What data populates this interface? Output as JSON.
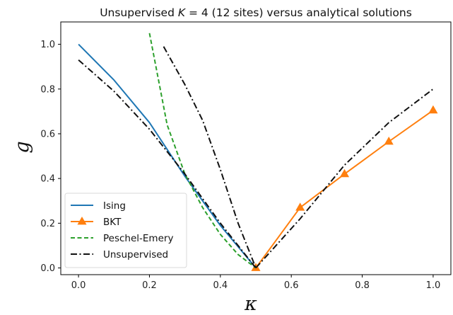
{
  "chart_data": {
    "type": "line",
    "title_parts": {
      "pre": "Unsupervised ",
      "var": "K",
      "post": " = 4 (12 sites) versus analytical solutions"
    },
    "xlabel": "κ",
    "ylabel": "g",
    "xlim": [
      -0.05,
      1.05
    ],
    "ylim": [
      -0.03,
      1.1
    ],
    "xticks": [
      "0.0",
      "0.2",
      "0.4",
      "0.6",
      "0.8",
      "1.0"
    ],
    "yticks": [
      "0.0",
      "0.2",
      "0.4",
      "0.6",
      "0.8",
      "1.0"
    ],
    "grid": false,
    "legend_position": "lower-left",
    "series": [
      {
        "name": "Ising",
        "color": "#1f77b4",
        "style": "solid",
        "marker": "none",
        "x": [
          0.0,
          0.1,
          0.2,
          0.3,
          0.4,
          0.5
        ],
        "y": [
          1.0,
          0.84,
          0.65,
          0.41,
          0.19,
          0.0
        ]
      },
      {
        "name": "BKT",
        "color": "#ff7f0e",
        "style": "solid",
        "marker": "triangle",
        "x": [
          0.5,
          0.625,
          0.75,
          0.875,
          1.0
        ],
        "y": [
          0.0,
          0.27,
          0.42,
          0.565,
          0.705
        ]
      },
      {
        "name": "Peschel-Emery",
        "color": "#2ca02c",
        "style": "dashed",
        "marker": "none",
        "x": [
          0.2,
          0.25,
          0.3,
          0.35,
          0.4,
          0.45,
          0.5
        ],
        "y": [
          1.05,
          0.64,
          0.42,
          0.27,
          0.15,
          0.06,
          0.0
        ]
      },
      {
        "name": "Unsupervised",
        "color": "#111111",
        "style": "dashdot",
        "marker": "none",
        "segments": [
          {
            "x": [
              0.0,
              0.1,
              0.2,
              0.3,
              0.4,
              0.5
            ],
            "y": [
              0.93,
              0.79,
              0.62,
              0.42,
              0.2,
              0.0
            ]
          },
          {
            "x": [
              0.24,
              0.3,
              0.35,
              0.4,
              0.45,
              0.5
            ],
            "y": [
              0.99,
              0.82,
              0.66,
              0.44,
              0.2,
              0.0
            ]
          },
          {
            "x": [
              0.5,
              0.625,
              0.75,
              0.875,
              1.0
            ],
            "y": [
              0.0,
              0.22,
              0.46,
              0.65,
              0.8
            ]
          }
        ]
      }
    ]
  }
}
